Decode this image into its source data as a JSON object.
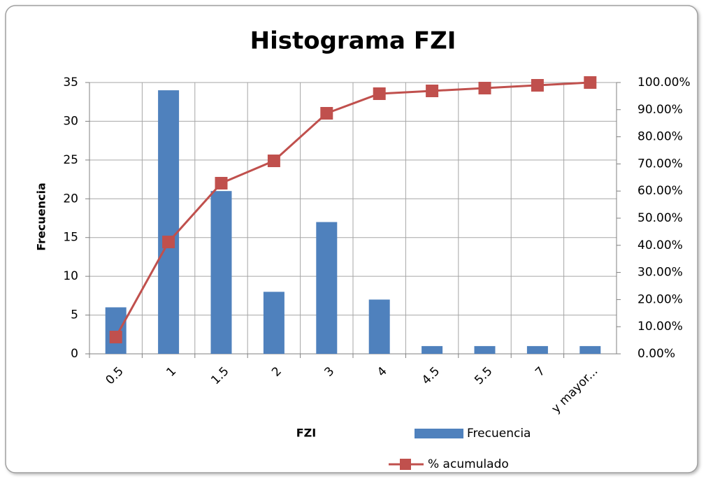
{
  "chart_data": {
    "type": "bar",
    "title": "Histograma FZI",
    "x_label": "FZI",
    "y_label": "Frecuencia",
    "categories": [
      "0.5",
      "1",
      "1.5",
      "2",
      "3",
      "4",
      "4.5",
      "5.5",
      "7",
      "y mayor..."
    ],
    "series": [
      {
        "name": "Frecuencia",
        "type": "bar",
        "color": "#4f81bd",
        "values": [
          6,
          34,
          21,
          8,
          17,
          7,
          1,
          1,
          1,
          1
        ]
      },
      {
        "name": "% acumulado",
        "type": "line",
        "axis": "y2",
        "color": "#c0504d",
        "values": [
          6.19,
          41.24,
          62.89,
          71.13,
          88.66,
          95.88,
          96.91,
          97.94,
          98.97,
          100
        ]
      }
    ],
    "ylim": [
      0,
      35
    ],
    "yticks": [
      0,
      5,
      10,
      15,
      20,
      25,
      30,
      35
    ],
    "y2lim": [
      0,
      100
    ],
    "y2ticks": [
      {
        "value": 0,
        "label": "0.00%"
      },
      {
        "value": 10,
        "label": "10.00%"
      },
      {
        "value": 20,
        "label": "20.00%"
      },
      {
        "value": 30,
        "label": "30.00%"
      },
      {
        "value": 40,
        "label": "40.00%"
      },
      {
        "value": 50,
        "label": "50.00%"
      },
      {
        "value": 60,
        "label": "60.00%"
      },
      {
        "value": 70,
        "label": "70.00%"
      },
      {
        "value": 80,
        "label": "80.00%"
      },
      {
        "value": 90,
        "label": "90.00%"
      },
      {
        "value": 100,
        "label": "100.00%"
      }
    ],
    "grid": true,
    "legend": "bottom-right"
  }
}
